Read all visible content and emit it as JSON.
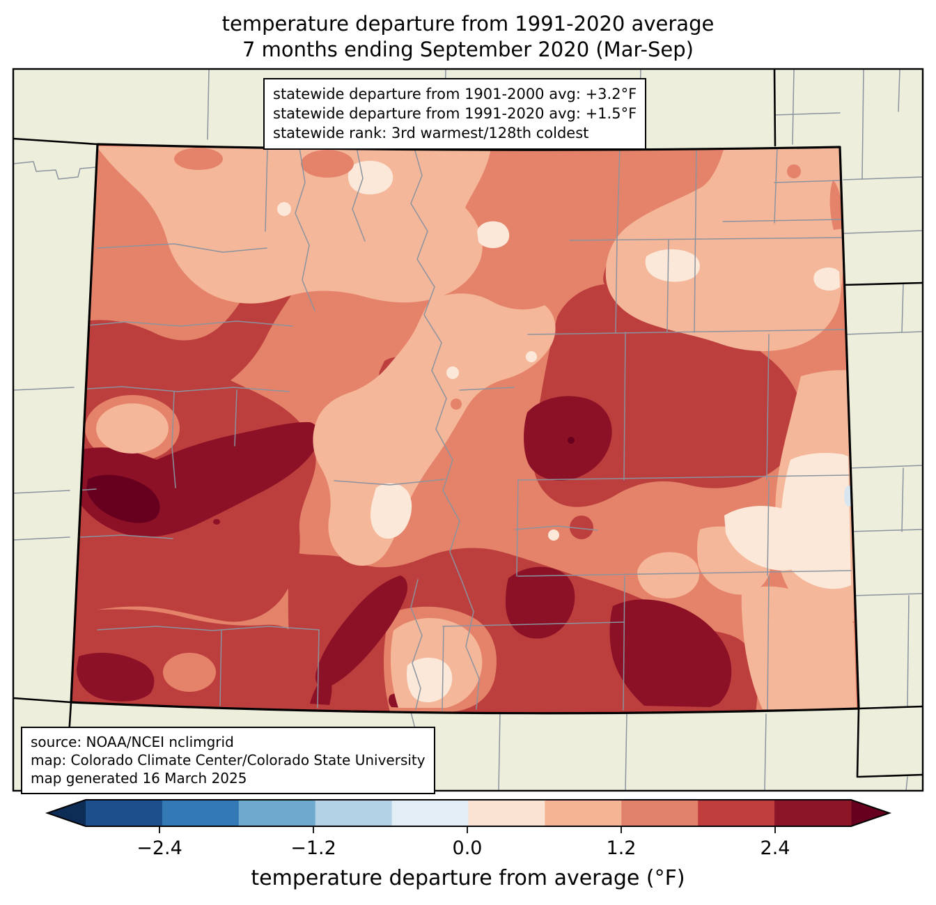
{
  "title": {
    "line1": "temperature departure from 1991-2020 average",
    "line2": "7 months ending September 2020 (Mar-Sep)"
  },
  "stats_box": {
    "line1": "statewide departure from 1901-2000 avg: +3.2°F",
    "line2": "statewide departure from 1991-2020 avg: +1.5°F",
    "line3": "statewide rank: 3rd warmest/128th coldest"
  },
  "source_box": {
    "line1": "source: NOAA/NCEI nclimgrid",
    "line2": "map: Colorado Climate Center/Colorado State University",
    "line3": "map generated 16 March 2025"
  },
  "colorbar": {
    "label": "temperature departure from average (°F)",
    "ticks": [
      "−2.4",
      "−1.2",
      "0.0",
      "1.2",
      "2.4"
    ],
    "tick_values": [
      -2.4,
      -1.2,
      0.0,
      1.2,
      2.4
    ],
    "range_min": -3.0,
    "range_max": 3.0,
    "segment_colors": [
      "#1c4f8c",
      "#3279b5",
      "#6faace",
      "#b4d2e6",
      "#e3edf5",
      "#fbe3d4",
      "#f5b493",
      "#e0826a",
      "#c03d3e",
      "#8c1627"
    ],
    "under_arrow_color": "#0d2d56",
    "over_arrow_color": "#67001f"
  },
  "map": {
    "region_label": "Colorado",
    "background_color": "#edeedc",
    "county_line_color": "#8b939e",
    "state_border_color": "#000000",
    "palette": {
      "lvl0": "#fbe8d9",
      "lvl1": "#f5b79a",
      "lvl2": "#e5836a",
      "lvl3": "#bc3f3e",
      "lvl4": "#8c1127",
      "lvl5": "#67001f",
      "neg1": "#d8e6f2"
    }
  }
}
